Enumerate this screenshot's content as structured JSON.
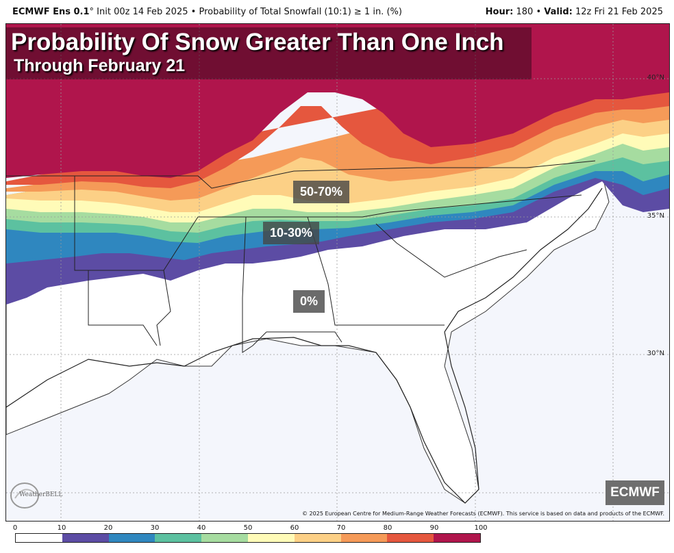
{
  "header": {
    "model": "ECMWF Ens 0.1",
    "degree": "°",
    "init": "Init 00z 14 Feb 2025",
    "product": "Probability of Total Snowfall (10:1) ≥ 1 in. (%)",
    "hour_label": "Hour:",
    "hour_value": "180",
    "valid_label": "Valid:",
    "valid_value": "12z Fri 21 Feb 2025",
    "separator": "•"
  },
  "title": {
    "main": "Probability Of Snow Greater Than One Inch",
    "sub": "Through February 21"
  },
  "annotations": {
    "high": "50-70%",
    "mid": "10-30%",
    "zero": "0%"
  },
  "latitudes": [
    "40°N",
    "35°N",
    "30°N"
  ],
  "badge": "ECMWF",
  "logo_text": "WeatherBELL",
  "copyright": "© 2025 European Centre for Medium-Range Weather Forecasts (ECMWF). This service is based on data and products of the ECMWF.",
  "legend": {
    "ticks": [
      "0",
      "10",
      "20",
      "30",
      "40",
      "50",
      "60",
      "70",
      "80",
      "90",
      "100"
    ],
    "colors": [
      "#ffffff",
      "#5c4ca4",
      "#2f87bf",
      "#5cc1a0",
      "#a6dca0",
      "#fffbb8",
      "#fcd086",
      "#f59a58",
      "#e5573e",
      "#b0154c"
    ]
  }
}
